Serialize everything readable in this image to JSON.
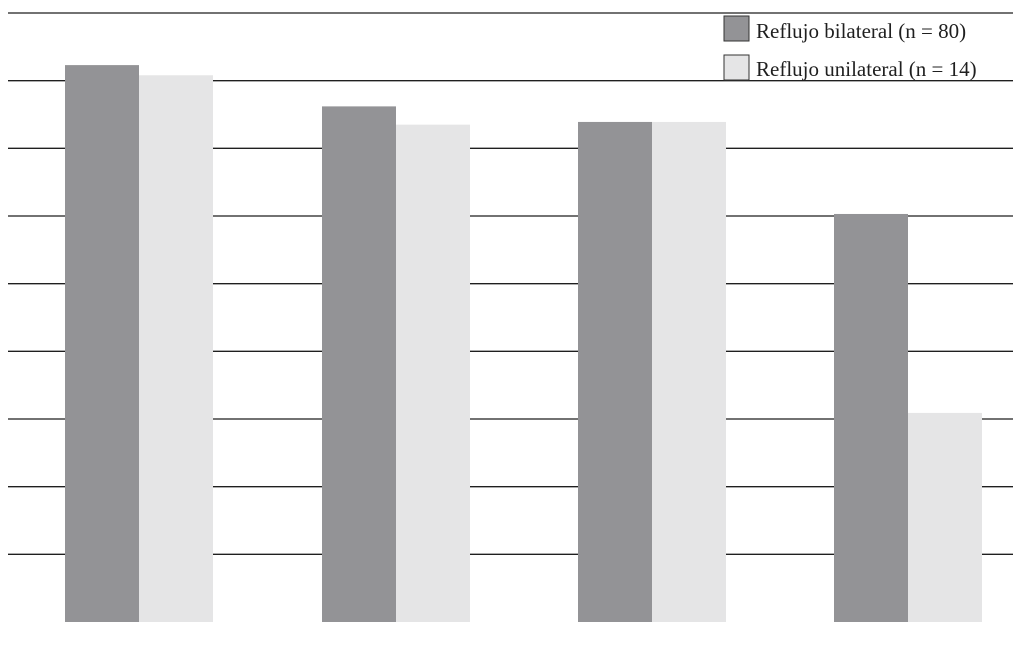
{
  "chart_data": {
    "type": "bar",
    "categories": [
      "",
      "",
      "",
      ""
    ],
    "series": [
      {
        "name": "Reflujo bilateral (n = 80)",
        "color": "#939396",
        "values": [
          8.23,
          7.62,
          7.39,
          6.03
        ]
      },
      {
        "name": "Reflujo unilateral (n = 14)",
        "color": "#e5e5e6",
        "values": [
          8.08,
          7.35,
          7.39,
          3.09
        ]
      }
    ],
    "title": "",
    "xlabel": "",
    "ylabel": "",
    "ylim": [
      0,
      9
    ],
    "grid": true,
    "legend_position": "top-right"
  }
}
